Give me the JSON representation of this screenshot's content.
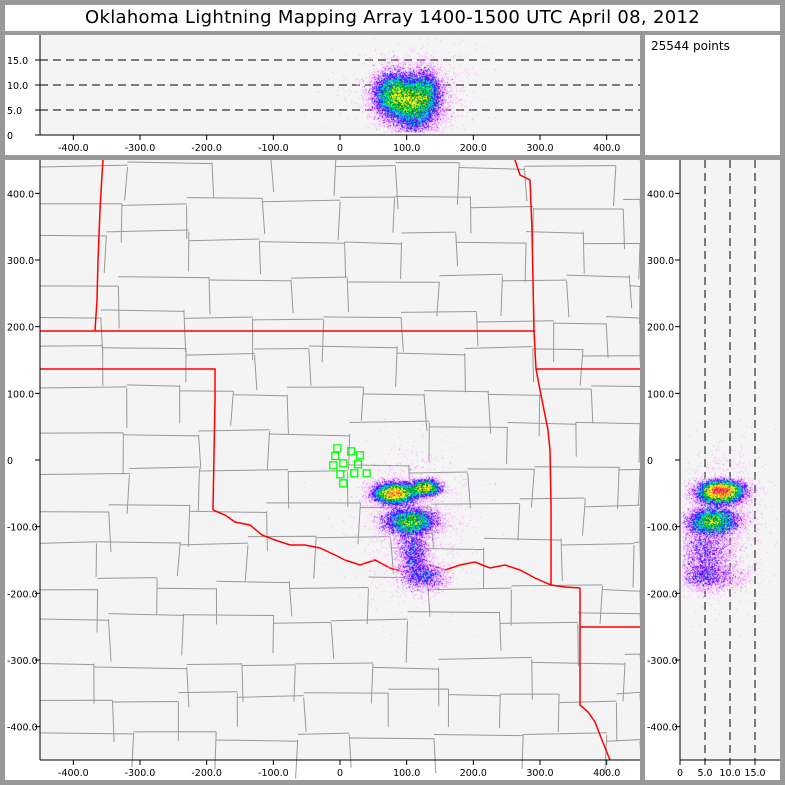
{
  "title": "Oklahoma Lightning Mapping Array   1400-1500 UTC  April 08, 2012",
  "info": {
    "points_label": "25544 points"
  },
  "colors": {
    "state_border": "#ff0000",
    "county_border": "#999999",
    "station": "#00ff00",
    "plot_bg": "#f4f4f4",
    "frame": "#999999"
  },
  "chart_data": [
    {
      "panel": "altitude-vs-east",
      "type": "scatter",
      "xlim": [
        -450,
        450
      ],
      "ylim": [
        0,
        20
      ],
      "x_ticks": [
        -400,
        -300,
        -200,
        -100,
        0,
        100,
        200,
        300,
        400
      ],
      "x_tick_labels": [
        "-400.0",
        "-300.0",
        "-200.0",
        "-100.0",
        "0",
        "100.0",
        "200.0",
        "300.0",
        "400.0"
      ],
      "y_ticks": [
        0,
        5,
        10,
        15
      ],
      "y_tick_labels": [
        "0",
        "5.0",
        "10.0",
        "15.0"
      ],
      "dashed_gridlines_y": [
        5,
        10,
        15
      ]
    },
    {
      "panel": "plan-view-map",
      "type": "scatter",
      "xlim": [
        -450,
        450
      ],
      "ylim": [
        -450,
        450
      ],
      "x_ticks": [
        -400,
        -300,
        -200,
        -100,
        0,
        100,
        200,
        300,
        400
      ],
      "x_tick_labels": [
        "-400.0",
        "-300.0",
        "-200.0",
        "-100.0",
        "0",
        "100.0",
        "200.0",
        "300.0",
        "400.0"
      ],
      "y_ticks": [
        400,
        300,
        200,
        100,
        0,
        -100,
        -200,
        -300,
        -400
      ],
      "y_tick_labels": [
        "400.0",
        "300.0",
        "200.0",
        "100.0",
        "0",
        "-100.0",
        "-200.0",
        "-300.0",
        "-400.0"
      ],
      "stations_km": [
        [
          -4,
          17.5
        ],
        [
          16.8,
          13
        ],
        [
          30,
          7
        ],
        [
          -7,
          6
        ],
        [
          5,
          -5
        ],
        [
          27,
          -6.5
        ],
        [
          -10,
          -8
        ],
        [
          0.5,
          -21.5
        ],
        [
          21.4,
          -20
        ],
        [
          40,
          -20
        ],
        [
          5,
          -35
        ]
      ]
    },
    {
      "panel": "north-vs-altitude",
      "type": "scatter",
      "xlim": [
        0,
        20
      ],
      "ylim": [
        -450,
        450
      ],
      "x_ticks": [
        0,
        5,
        10,
        15
      ],
      "x_tick_labels": [
        "0",
        "5.0",
        "10.0",
        "15.0"
      ],
      "y_ticks": [
        400,
        300,
        200,
        100,
        0,
        -100,
        -200,
        -300,
        -400
      ],
      "y_tick_labels": [
        "400.0",
        "300.0",
        "200.0",
        "100.0",
        "0",
        "-100.0",
        "-200.0",
        "-300.0",
        "-400.0"
      ],
      "dashed_gridlines_x": [
        5,
        10,
        15
      ]
    }
  ],
  "source_clusters_km": [
    {
      "x": 82,
      "y": -50,
      "z": 8,
      "sx": 16,
      "sy": 8,
      "sz": 2.2,
      "n": 9000
    },
    {
      "x": 128,
      "y": -42,
      "z": 8.5,
      "sx": 12,
      "sy": 6,
      "sz": 2.2,
      "n": 4000
    },
    {
      "x": 105,
      "y": -92,
      "z": 6.5,
      "sx": 20,
      "sy": 10,
      "sz": 2.5,
      "n": 7000
    },
    {
      "x": 110,
      "y": -140,
      "z": 5,
      "sx": 12,
      "sy": 25,
      "sz": 2.8,
      "n": 3000
    },
    {
      "x": 130,
      "y": -175,
      "z": 6,
      "sx": 15,
      "sy": 10,
      "sz": 3.5,
      "n": 1500
    },
    {
      "x": 110,
      "y": -90,
      "z": 9,
      "sx": 45,
      "sy": 55,
      "sz": 4,
      "n": 1044
    }
  ]
}
